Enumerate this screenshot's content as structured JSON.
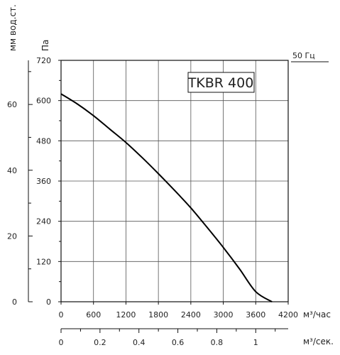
{
  "chart_data": {
    "type": "line",
    "title": "",
    "badge": "TKBR 400",
    "frequency_label": "50 Гц",
    "ylabel_pa": "Па",
    "ylabel_mm": "мм вод.ст.",
    "xlabel_m3h": "м³/час",
    "xlabel_m3s": "м³/сек.",
    "xlim": [
      0,
      4200
    ],
    "ylim": [
      0,
      720
    ],
    "x_ticks": [
      0,
      600,
      1200,
      1800,
      2400,
      3000,
      3600,
      4200
    ],
    "x_tick_labels": [
      "0",
      "600",
      "1200",
      "1800",
      "2400",
      "3000",
      "3600",
      "4200"
    ],
    "y_ticks": [
      0,
      120,
      240,
      360,
      480,
      600,
      720
    ],
    "y_tick_labels": [
      "0",
      "120",
      "240",
      "360",
      "480",
      "600",
      "720"
    ],
    "mm_ticks": [
      0,
      20,
      40,
      60
    ],
    "mm_tick_labels": [
      "0",
      "20",
      "40",
      "60"
    ],
    "m3s_ticks": [
      0,
      0.2,
      0.4,
      0.6,
      0.8,
      1
    ],
    "m3s_tick_labels": [
      "0",
      "0.2",
      "0.4",
      "0.6",
      "0.8",
      "1"
    ],
    "grid": true,
    "series": [
      {
        "x": [
          0,
          300,
          600,
          900,
          1200,
          1500,
          1800,
          2100,
          2400,
          2700,
          3000,
          3300,
          3600,
          3900
        ],
        "values": [
          620,
          590,
          555,
          515,
          475,
          430,
          382,
          332,
          280,
          222,
          162,
          98,
          30,
          0
        ]
      }
    ]
  }
}
